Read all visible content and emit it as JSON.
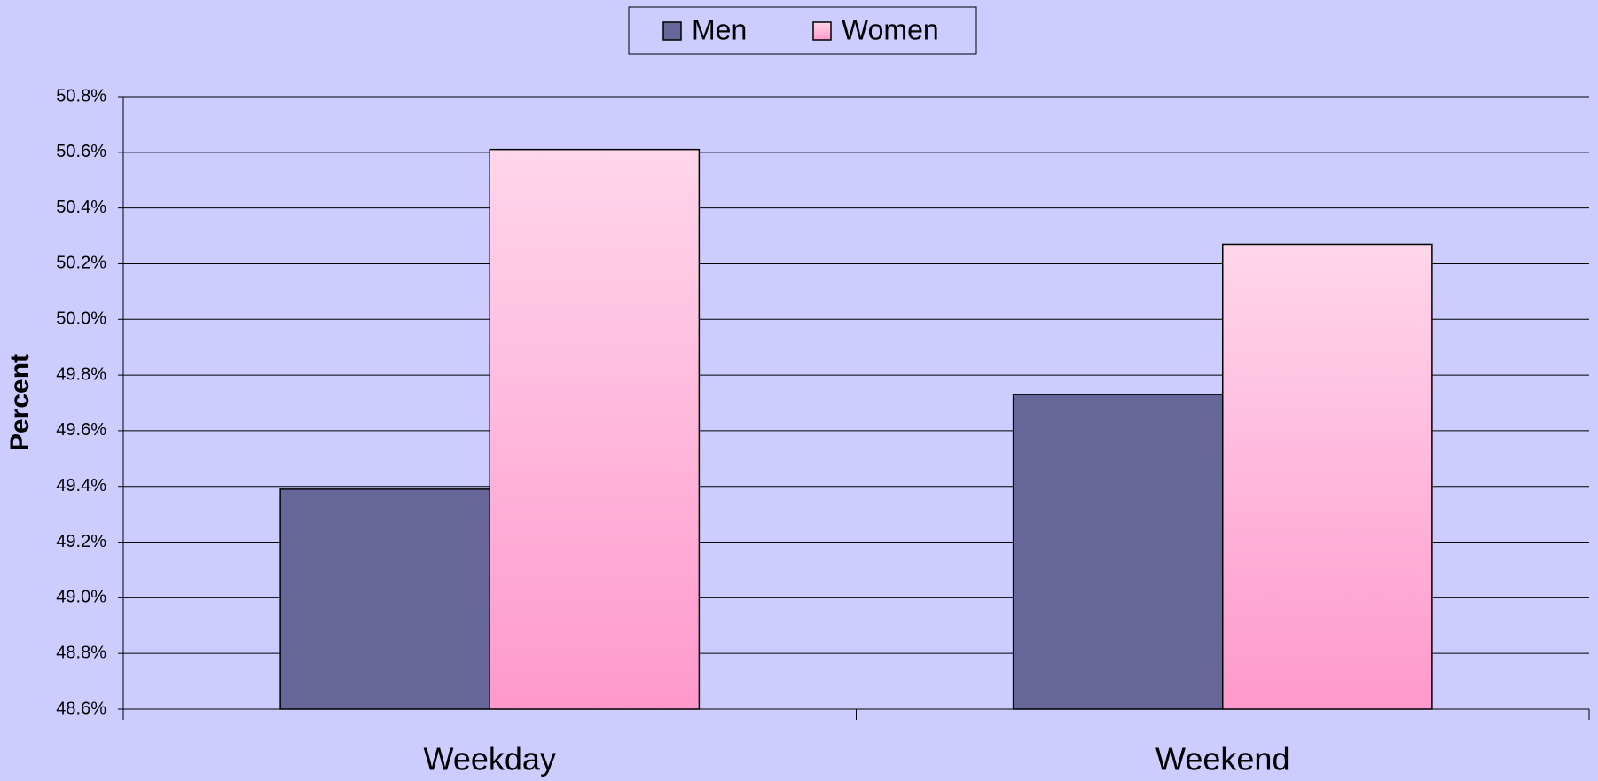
{
  "chart_data": {
    "type": "bar",
    "y_label": "Percent",
    "categories": [
      "Weekday",
      "Weekend"
    ],
    "series": [
      {
        "name": "Men",
        "color": "#666699",
        "values": [
          49.39,
          49.73
        ]
      },
      {
        "name": "Women",
        "color": "#ff99cc",
        "values": [
          50.61,
          50.27
        ]
      }
    ],
    "ylim": [
      48.6,
      50.8
    ],
    "yticks": [
      {
        "value": 48.6,
        "label": "48.6%"
      },
      {
        "value": 48.8,
        "label": "48.8%"
      },
      {
        "value": 49.0,
        "label": "49.0%"
      },
      {
        "value": 49.2,
        "label": "49.2%"
      },
      {
        "value": 49.4,
        "label": "49.4%"
      },
      {
        "value": 49.6,
        "label": "49.6%"
      },
      {
        "value": 49.8,
        "label": "49.8%"
      },
      {
        "value": 50.0,
        "label": "50.0%"
      },
      {
        "value": 50.2,
        "label": "50.2%"
      },
      {
        "value": 50.4,
        "label": "50.4%"
      },
      {
        "value": 50.6,
        "label": "50.6%"
      },
      {
        "value": 50.8,
        "label": "50.8%"
      }
    ],
    "grid": true,
    "legend": "top"
  }
}
